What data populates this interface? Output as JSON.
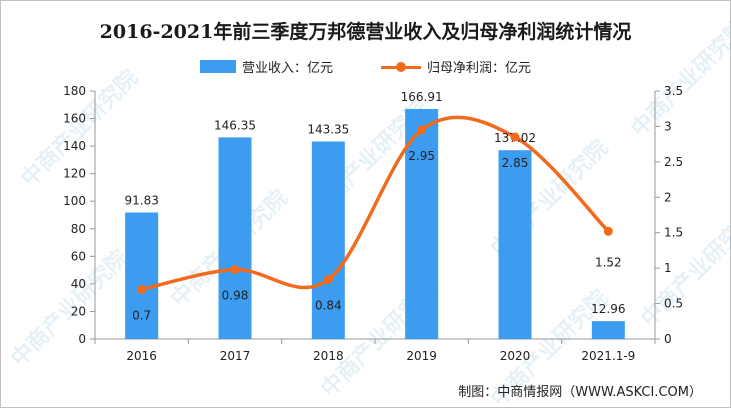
{
  "title": "2016-2021年前三季度万邦德营业收入及归母净利润统计情况",
  "source": "制图：中商情报网（WWW.ASKCI.COM）",
  "watermark": "中商产业研究院",
  "colors": {
    "bar": "#3c9cf0",
    "line": "#f26b1d",
    "axis": "#999999",
    "text": "#222222"
  },
  "chart_data": {
    "type": "bar",
    "categories": [
      "2016",
      "2017",
      "2018",
      "2019",
      "2020",
      "2021.1-9"
    ],
    "series": [
      {
        "name": "营业收入：亿元",
        "type": "bar",
        "axis": "left",
        "values": [
          91.83,
          146.35,
          143.35,
          166.91,
          137.02,
          12.96
        ]
      },
      {
        "name": "归母净利润：亿元",
        "type": "line",
        "axis": "right",
        "values": [
          0.7,
          0.98,
          0.84,
          2.95,
          2.85,
          1.52
        ]
      }
    ],
    "y_left": {
      "ylim": [
        0,
        180
      ],
      "ticks": [
        0,
        20,
        40,
        60,
        80,
        100,
        120,
        140,
        160,
        180
      ]
    },
    "y_right": {
      "ylim": [
        0,
        3.5
      ],
      "ticks": [
        "0",
        "0.5",
        "1",
        "1.5",
        "2",
        "2.5",
        "3",
        "3.5"
      ]
    },
    "bar_labels": [
      "91.83",
      "146.35",
      "143.35",
      "166.91",
      "137.02",
      "12.96"
    ],
    "line_labels": [
      "0.7",
      "0.98",
      "0.84",
      "2.95",
      "2.85",
      "1.52"
    ],
    "legend_position": "top-center",
    "grid": false
  }
}
